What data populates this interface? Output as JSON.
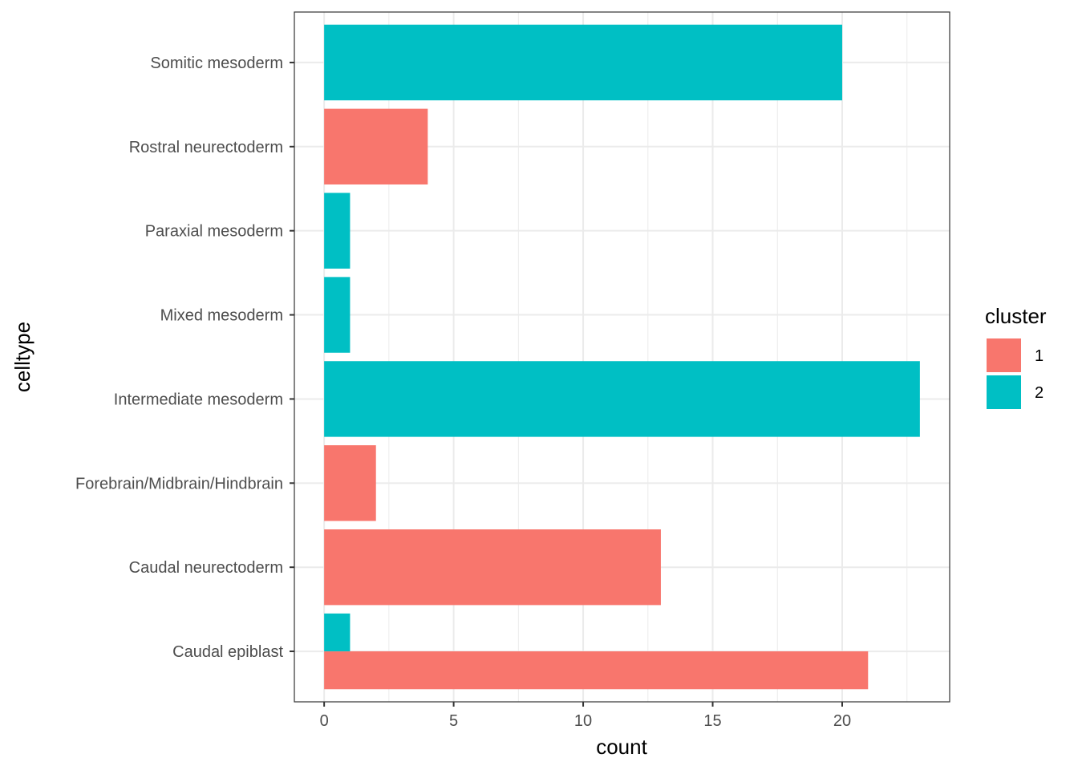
{
  "chart_data": {
    "type": "bar",
    "orientation": "horizontal",
    "position": "dodge",
    "xlabel": "count",
    "ylabel": "celltype",
    "xlim": [
      0,
      24
    ],
    "x_ticks": [
      0,
      5,
      10,
      15,
      20
    ],
    "grid": true,
    "categories": [
      "Caudal epiblast",
      "Caudal neurectoderm",
      "Forebrain/Midbrain/Hindbrain",
      "Intermediate mesoderm",
      "Mixed mesoderm",
      "Paraxial mesoderm",
      "Rostral neurectoderm",
      "Somitic mesoderm"
    ],
    "series": [
      {
        "name": "1",
        "color": "#F8766D",
        "values": [
          21,
          13,
          2,
          null,
          null,
          null,
          4,
          null
        ]
      },
      {
        "name": "2",
        "color": "#00BFC4",
        "values": [
          1,
          null,
          null,
          23,
          1,
          1,
          null,
          20
        ]
      }
    ],
    "legend": {
      "title": "cluster",
      "placement": "right"
    }
  }
}
